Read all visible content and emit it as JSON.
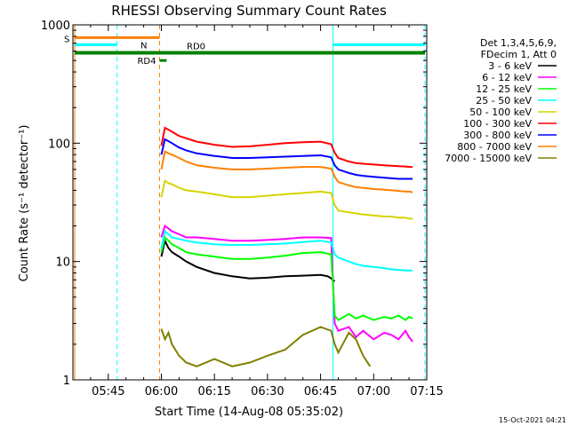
{
  "chart_data": {
    "type": "line",
    "title": "RHESSI Observing Summary Count Rates",
    "xlabel": "Start Time (14-Aug-08 05:35:02)",
    "ylabel": "Count Rate (s⁻¹ detector⁻¹)",
    "x_unit": "minutes since 05:35:02",
    "xlim": [
      0,
      100
    ],
    "ylim": [
      1,
      1000
    ],
    "yscale": "log",
    "grid": false,
    "x_tick_labels": [
      {
        "label": "05:45",
        "x": 10
      },
      {
        "label": "06:00",
        "x": 25
      },
      {
        "label": "06:15",
        "x": 40
      },
      {
        "label": "06:30",
        "x": 55
      },
      {
        "label": "06:45",
        "x": 70
      },
      {
        "label": "07:00",
        "x": 85
      },
      {
        "label": "07:15",
        "x": 100
      }
    ],
    "y_tick_labels": [
      {
        "label": "1",
        "y": 1
      },
      {
        "label": "10",
        "y": 10
      },
      {
        "label": "100",
        "y": 100
      },
      {
        "label": "1000",
        "y": 1000
      }
    ],
    "legend": {
      "position": "right",
      "header": [
        "Det 1,3,4,5,6,9,",
        "FDecim 1, Att 0"
      ]
    },
    "series": [
      {
        "name": "3 - 6 keV",
        "color": "#000000",
        "x": [
          25,
          26,
          27,
          28,
          30,
          32,
          35,
          40,
          45,
          50,
          55,
          60,
          65,
          70,
          72,
          73,
          74
        ],
        "y": [
          11,
          15,
          13,
          12,
          11,
          10,
          9,
          8,
          7.5,
          7.2,
          7.3,
          7.5,
          7.6,
          7.7,
          7.5,
          7.2,
          6.8
        ]
      },
      {
        "name": "6 - 12 keV",
        "color": "#ff00ff",
        "x": [
          25,
          26,
          27,
          28,
          30,
          32,
          35,
          40,
          45,
          50,
          55,
          60,
          65,
          70,
          73,
          74,
          75,
          78,
          80,
          82,
          85,
          88,
          90,
          92,
          94,
          95,
          96
        ],
        "y": [
          16,
          20,
          19,
          18,
          17,
          16,
          16,
          15.5,
          15,
          15,
          15.2,
          15.5,
          16,
          16,
          15.8,
          3,
          2.6,
          2.8,
          2.3,
          2.6,
          2.2,
          2.5,
          2.4,
          2.2,
          2.6,
          2.3,
          2.1
        ]
      },
      {
        "name": "12 - 25 keV",
        "color": "#00ff00",
        "x": [
          25,
          26,
          27,
          28,
          30,
          32,
          35,
          40,
          45,
          50,
          55,
          60,
          65,
          70,
          73,
          74,
          75,
          78,
          80,
          82,
          85,
          88,
          90,
          92,
          94,
          95,
          96
        ],
        "y": [
          12,
          16,
          15,
          14,
          13,
          12,
          11.5,
          11,
          10.5,
          10.5,
          10.8,
          11.2,
          11.8,
          12,
          11.5,
          3.5,
          3.2,
          3.6,
          3.3,
          3.5,
          3.2,
          3.4,
          3.3,
          3.5,
          3.2,
          3.4,
          3.3
        ]
      },
      {
        "name": "25 - 50 keV",
        "color": "#00ffff",
        "x": [
          25,
          26,
          27,
          28,
          30,
          32,
          35,
          40,
          45,
          50,
          55,
          60,
          65,
          70,
          73,
          74,
          75,
          78,
          80,
          82,
          85,
          88,
          90,
          92,
          94,
          95,
          96
        ],
        "y": [
          13,
          18,
          17,
          16,
          15.5,
          15,
          14.5,
          14,
          13.8,
          13.8,
          14,
          14.2,
          14.6,
          15,
          14.5,
          11.5,
          10.8,
          10,
          9.5,
          9.2,
          9,
          8.8,
          8.6,
          8.5,
          8.4,
          8.4,
          8.4
        ]
      },
      {
        "name": "50 - 100 keV",
        "color": "#d4d400",
        "x": [
          25,
          26,
          27,
          28,
          30,
          32,
          35,
          40,
          45,
          50,
          55,
          60,
          65,
          70,
          73,
          74,
          75,
          78,
          80,
          82,
          85,
          88,
          90,
          92,
          94,
          95,
          96
        ],
        "y": [
          35,
          48,
          46,
          45,
          42,
          40,
          39,
          37,
          35,
          35,
          36,
          37,
          38,
          39,
          38,
          30,
          27,
          26,
          25.5,
          25,
          24.5,
          24,
          24,
          23.5,
          23.5,
          23,
          23
        ]
      },
      {
        "name": "100 - 300 keV",
        "color": "#ff0000",
        "x": [
          25,
          26,
          27,
          28,
          30,
          32,
          35,
          40,
          45,
          50,
          55,
          60,
          65,
          70,
          73,
          74,
          75,
          78,
          80,
          82,
          85,
          88,
          90,
          92,
          94,
          95,
          96
        ],
        "y": [
          95,
          135,
          130,
          125,
          115,
          110,
          103,
          97,
          93,
          94,
          97,
          100,
          102,
          103,
          98,
          83,
          75,
          70,
          68,
          67,
          66,
          65,
          64.5,
          64,
          63.5,
          63,
          63
        ]
      },
      {
        "name": "300 - 800 keV",
        "color": "#0000ff",
        "x": [
          25,
          26,
          27,
          28,
          30,
          32,
          35,
          40,
          45,
          50,
          55,
          60,
          65,
          70,
          73,
          74,
          75,
          78,
          80,
          82,
          85,
          88,
          90,
          92,
          94,
          95,
          96
        ],
        "y": [
          80,
          108,
          104,
          100,
          92,
          87,
          82,
          78,
          75,
          75,
          76,
          77,
          78,
          79,
          76,
          65,
          60,
          56,
          54,
          53,
          52,
          51,
          50.5,
          50,
          50,
          50,
          50
        ]
      },
      {
        "name": "800 - 7000 keV",
        "color": "#ff8000",
        "x": [
          25,
          26,
          27,
          28,
          30,
          32,
          35,
          40,
          45,
          50,
          55,
          60,
          65,
          70,
          73,
          74,
          75,
          78,
          80,
          82,
          85,
          88,
          90,
          92,
          94,
          95,
          96
        ],
        "y": [
          60,
          85,
          82,
          80,
          75,
          70,
          65,
          62,
          60,
          60,
          61,
          62,
          63,
          63,
          61,
          52,
          47,
          44,
          42.5,
          42,
          41,
          40.5,
          40,
          39.5,
          39,
          39,
          38.5
        ]
      },
      {
        "name": "7000 - 15000 keV",
        "color": "#808000",
        "x": [
          25,
          26,
          27,
          28,
          30,
          32,
          35,
          40,
          45,
          50,
          55,
          60,
          65,
          70,
          73,
          74,
          75,
          78,
          80,
          82,
          84
        ],
        "y": [
          2.7,
          2.2,
          2.5,
          2.0,
          1.6,
          1.4,
          1.3,
          1.5,
          1.3,
          1.4,
          1.6,
          1.8,
          2.4,
          2.8,
          2.6,
          2.0,
          1.7,
          2.5,
          2.2,
          1.6,
          1.3
        ]
      }
    ],
    "annotations": {
      "S": {
        "label": "S",
        "color": "#ff8000",
        "x": [
          0.5,
          24.5
        ],
        "y": 780
      },
      "N": {
        "label": "N",
        "color": "#00ffff",
        "segments": [
          [
            0.5,
            12.5
          ],
          [
            73.5,
            99.5
          ]
        ],
        "y": 680
      },
      "RD0": {
        "label": "RD0",
        "color": "#008000",
        "x": [
          0.5,
          99.5
        ],
        "y": 580
      },
      "RD4": {
        "label": "RD4",
        "color": "#008000",
        "x": [
          24.5,
          26.5
        ],
        "y": 500
      },
      "vlines": [
        {
          "x": 0.5,
          "color": "#ff8000",
          "style": "solid"
        },
        {
          "x": 12.5,
          "color": "#00ffff",
          "style": "dashed"
        },
        {
          "x": 24.5,
          "color": "#ff8000",
          "style": "dashed"
        },
        {
          "x": 73.5,
          "color": "#00ffff",
          "style": "solid"
        },
        {
          "x": 99.5,
          "color": "#00ffff",
          "style": "dashed"
        }
      ]
    }
  },
  "footer": {
    "date": "15-Oct-2021 04:21"
  }
}
